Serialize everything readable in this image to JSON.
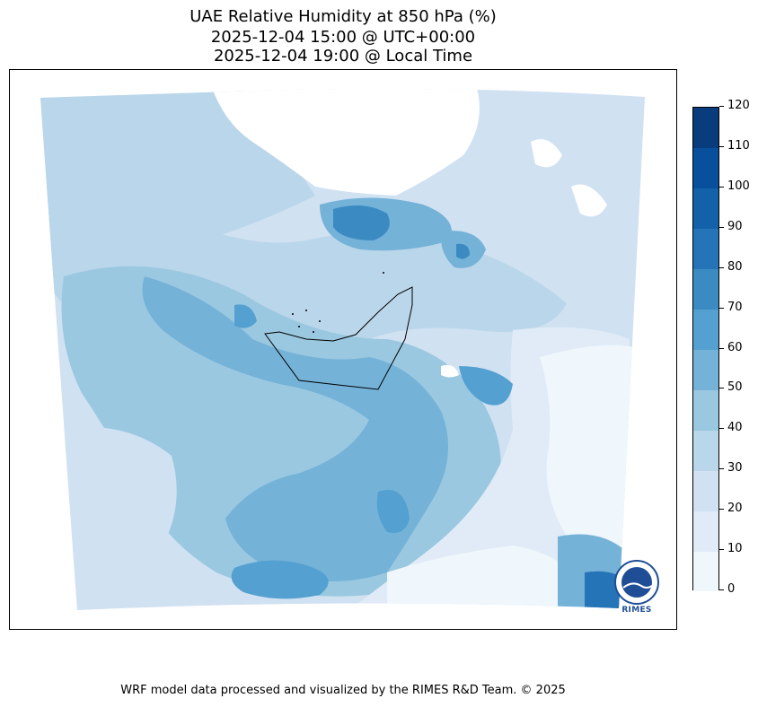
{
  "titles": {
    "line1": "UAE Relative Humidity at 850 hPa (%)",
    "line2": "2025-12-04 15:00 @ UTC+00:00",
    "line3": "2025-12-04 19:00 @ Local Time"
  },
  "colorbar": {
    "ticks": [
      "0",
      "10",
      "20",
      "30",
      "40",
      "50",
      "60",
      "70",
      "80",
      "90",
      "100",
      "110",
      "120"
    ],
    "levels": [
      0,
      10,
      20,
      30,
      40,
      50,
      60,
      70,
      80,
      90,
      100,
      110,
      120
    ],
    "colors": [
      "#eff6fc",
      "#e0ebf7",
      "#d0e1f2",
      "#bad6eb",
      "#9ac8e0",
      "#74b2d8",
      "#54a0d0",
      "#3b8bc2",
      "#2474b7",
      "#1361a8",
      "#08509b",
      "#083c7d"
    ]
  },
  "logo": {
    "text": "RIMES"
  },
  "footer": "WRF model data processed and visualized by the RIMES R&D Team. © 2025",
  "map": {
    "region": "UAE",
    "variable": "Relative Humidity",
    "level": "850 hPa",
    "units": "%"
  }
}
